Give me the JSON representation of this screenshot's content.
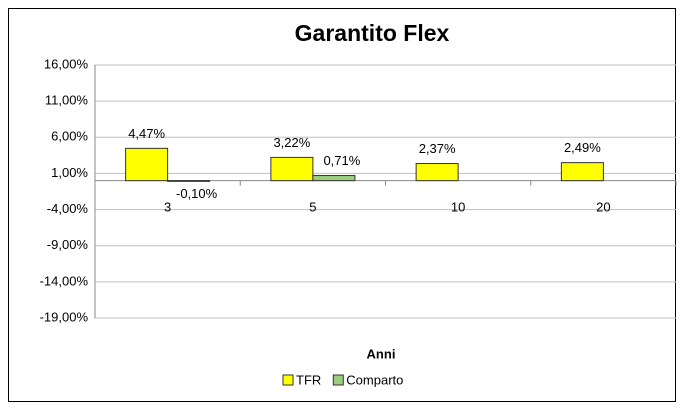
{
  "chart_data": {
    "type": "bar",
    "title": "Garantito Flex",
    "x_label": "Anni",
    "categories": [
      "3",
      "5",
      "10",
      "20"
    ],
    "series": [
      {
        "name": "TFR",
        "color": "#ffff00",
        "values": [
          4.47,
          3.22,
          2.37,
          2.49
        ],
        "value_labels": [
          "4,47%",
          "3,22%",
          "2,37%",
          "2,49%"
        ]
      },
      {
        "name": "Comparto",
        "color": "#9bcf7f",
        "values": [
          -0.1,
          0.71,
          null,
          null
        ],
        "value_labels": [
          "-0,10%",
          "0,71%",
          null,
          null
        ]
      }
    ],
    "ylim": [
      -19,
      16
    ],
    "yticks": [
      {
        "value": 16,
        "label": "16,00%"
      },
      {
        "value": 11,
        "label": "11,00%"
      },
      {
        "value": 6,
        "label": "6,00%"
      },
      {
        "value": 1,
        "label": "1,00%"
      },
      {
        "value": -4,
        "label": "-4,00%"
      },
      {
        "value": -9,
        "label": "-9,00%"
      },
      {
        "value": -14,
        "label": "-14,00%"
      },
      {
        "value": -19,
        "label": "-19,00%"
      }
    ],
    "grid": true,
    "legend": "bottom"
  }
}
